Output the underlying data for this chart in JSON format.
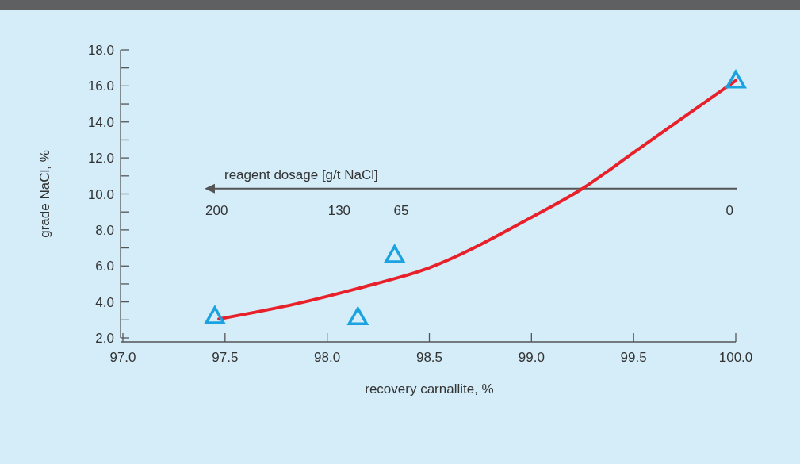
{
  "chart_data": {
    "type": "scatter",
    "xlabel": "recovery carnallite, %",
    "ylabel": "grade NaCl, %",
    "xlim": [
      97,
      100
    ],
    "xticks": [
      {
        "value": 97,
        "label": "97.0"
      },
      {
        "value": 97.5,
        "label": "97.5"
      },
      {
        "value": 98,
        "label": "98.0"
      },
      {
        "value": 98.5,
        "label": "98.5"
      },
      {
        "value": 99,
        "label": "99.0"
      },
      {
        "value": 99.5,
        "label": "99.5"
      },
      {
        "value": 100,
        "label": "100.0"
      }
    ],
    "ylim": [
      2,
      18
    ],
    "yticks": [
      {
        "value": 2,
        "label": "2.0"
      },
      {
        "value": 3,
        "label": null
      },
      {
        "value": 4,
        "label": "4.0"
      },
      {
        "value": 5,
        "label": null
      },
      {
        "value": 6,
        "label": "6.0"
      },
      {
        "value": 7,
        "label": null
      },
      {
        "value": 8,
        "label": "8.0"
      },
      {
        "value": 9,
        "label": null
      },
      {
        "value": 10,
        "label": "10.0"
      },
      {
        "value": 11,
        "label": null
      },
      {
        "value": 12,
        "label": "12.0"
      },
      {
        "value": 13,
        "label": null
      },
      {
        "value": 14,
        "label": "14.0"
      },
      {
        "value": 15,
        "label": null
      },
      {
        "value": 16,
        "label": "16.0"
      },
      {
        "value": 17,
        "label": null
      },
      {
        "value": 18,
        "label": "18.0"
      }
    ],
    "grid": false,
    "series": [
      {
        "type": "line",
        "color": "#e8202a",
        "marker": "none",
        "line_style": "solid",
        "x": [
          97.47,
          97.85,
          98.15,
          98.5,
          99.0,
          99.25,
          99.5,
          99.75,
          100
        ],
        "values": [
          3.05,
          3.9,
          4.75,
          5.9,
          8.7,
          10.3,
          12.3,
          14.3,
          16.3
        ]
      },
      {
        "color": "#1aa3e0",
        "marker": "triangle",
        "x": [
          97.45,
          98.15,
          98.33,
          100
        ],
        "values": [
          3.2,
          3.15,
          6.6,
          16.3
        ]
      }
    ],
    "ref_lines": [
      {
        "axis": "y",
        "value": 10.3,
        "label": "reagent dosage [g/t NaCl]",
        "color": "#555555"
      }
    ],
    "annotations": [
      "200",
      "130",
      "65",
      "0"
    ]
  }
}
